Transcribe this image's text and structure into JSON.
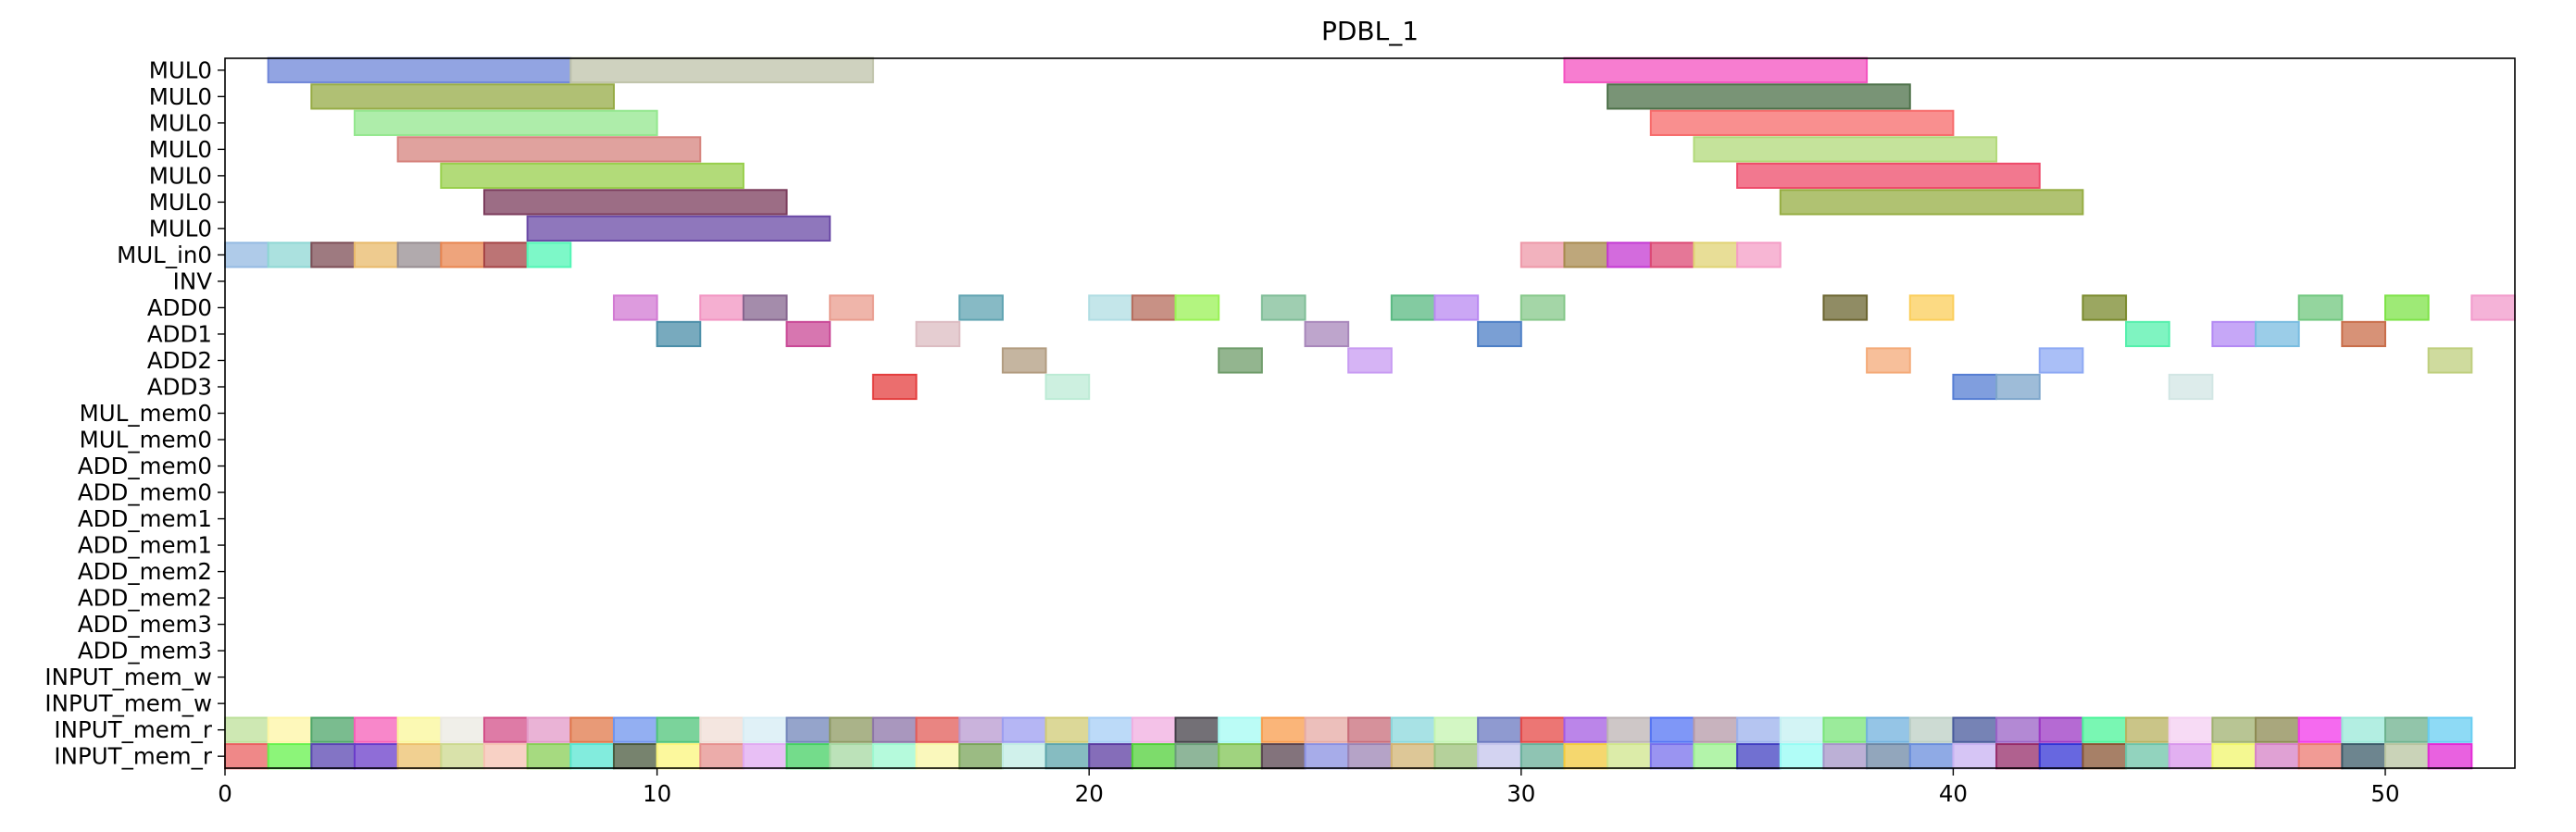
{
  "chart_data": {
    "type": "gantt",
    "title": "PDBL_1",
    "xlabel": "",
    "ylabel": "",
    "xlim": [
      0,
      53
    ],
    "x_ticks": [
      0,
      10,
      20,
      30,
      40,
      50
    ],
    "grid": false,
    "rows": [
      "MUL0",
      "MUL0",
      "MUL0",
      "MUL0",
      "MUL0",
      "MUL0",
      "MUL0",
      "MUL_in0",
      "INV",
      "ADD0",
      "ADD1",
      "ADD2",
      "ADD3",
      "MUL_mem0",
      "MUL_mem0",
      "ADD_mem0",
      "ADD_mem0",
      "ADD_mem1",
      "ADD_mem1",
      "ADD_mem2",
      "ADD_mem2",
      "ADD_mem3",
      "ADD_mem3",
      "INPUT_mem_w",
      "INPUT_mem_w",
      "INPUT_mem_r",
      "INPUT_mem_r"
    ],
    "tasks": [
      {
        "row": 0,
        "start": 1,
        "end": 8,
        "color": "#6e85d8"
      },
      {
        "row": 0,
        "start": 8,
        "end": 15,
        "color": "#bfc3a9"
      },
      {
        "row": 1,
        "start": 2,
        "end": 9,
        "color": "#96ab45"
      },
      {
        "row": 2,
        "start": 3,
        "end": 10,
        "color": "#93e78e"
      },
      {
        "row": 3,
        "start": 4,
        "end": 11,
        "color": "#d6837d"
      },
      {
        "row": 4,
        "start": 5,
        "end": 12,
        "color": "#98cf4c"
      },
      {
        "row": 5,
        "start": 6,
        "end": 13,
        "color": "#7b3c5c"
      },
      {
        "row": 6,
        "start": 7,
        "end": 14,
        "color": "#6a49a6"
      },
      {
        "row": 0,
        "start": 31,
        "end": 38,
        "color": "#f452c0"
      },
      {
        "row": 1,
        "start": 32,
        "end": 39,
        "color": "#4c7048"
      },
      {
        "row": 2,
        "start": 33,
        "end": 40,
        "color": "#f76a6a"
      },
      {
        "row": 3,
        "start": 34,
        "end": 41,
        "color": "#b2d97a"
      },
      {
        "row": 4,
        "start": 35,
        "end": 42,
        "color": "#ee4b6a"
      },
      {
        "row": 5,
        "start": 36,
        "end": 43,
        "color": "#96ad43"
      },
      {
        "row": 7,
        "start": 0,
        "end": 1,
        "color": "#94bae2"
      },
      {
        "row": 7,
        "start": 1,
        "end": 2,
        "color": "#8fd7d4"
      },
      {
        "row": 7,
        "start": 2,
        "end": 3,
        "color": "#7d4e56"
      },
      {
        "row": 7,
        "start": 3,
        "end": 4,
        "color": "#e8b96a"
      },
      {
        "row": 7,
        "start": 4,
        "end": 5,
        "color": "#978d91"
      },
      {
        "row": 7,
        "start": 5,
        "end": 6,
        "color": "#e88550"
      },
      {
        "row": 7,
        "start": 6,
        "end": 7,
        "color": "#a64547"
      },
      {
        "row": 7,
        "start": 7,
        "end": 8,
        "color": "#52f5b5"
      },
      {
        "row": 7,
        "start": 30,
        "end": 31,
        "color": "#ee98a8"
      },
      {
        "row": 7,
        "start": 31,
        "end": 32,
        "color": "#a88a4f"
      },
      {
        "row": 7,
        "start": 32,
        "end": 33,
        "color": "#c43ad2"
      },
      {
        "row": 7,
        "start": 33,
        "end": 34,
        "color": "#dc4a74"
      },
      {
        "row": 7,
        "start": 34,
        "end": 35,
        "color": "#e0d374"
      },
      {
        "row": 7,
        "start": 35,
        "end": 36,
        "color": "#f49dc6"
      },
      {
        "row": 9,
        "start": 9,
        "end": 10,
        "color": "#d27ad3"
      },
      {
        "row": 9,
        "start": 11,
        "end": 12,
        "color": "#f294c2"
      },
      {
        "row": 9,
        "start": 12,
        "end": 13,
        "color": "#86658f"
      },
      {
        "row": 9,
        "start": 14,
        "end": 15,
        "color": "#e99c8e"
      },
      {
        "row": 9,
        "start": 17,
        "end": 18,
        "color": "#5fa3b1"
      },
      {
        "row": 9,
        "start": 20,
        "end": 21,
        "color": "#b0dde3"
      },
      {
        "row": 9,
        "start": 21,
        "end": 22,
        "color": "#b66c5c"
      },
      {
        "row": 9,
        "start": 22,
        "end": 23,
        "color": "#9af256"
      },
      {
        "row": 9,
        "start": 24,
        "end": 25,
        "color": "#7fbd97"
      },
      {
        "row": 9,
        "start": 27,
        "end": 28,
        "color": "#5ab982"
      },
      {
        "row": 9,
        "start": 28,
        "end": 29,
        "color": "#b98af2"
      },
      {
        "row": 9,
        "start": 30,
        "end": 31,
        "color": "#86c88a"
      },
      {
        "row": 9,
        "start": 37,
        "end": 38,
        "color": "#6b6530"
      },
      {
        "row": 9,
        "start": 39,
        "end": 40,
        "color": "#fbce5a"
      },
      {
        "row": 9,
        "start": 43,
        "end": 44,
        "color": "#7a8a2c"
      },
      {
        "row": 9,
        "start": 48,
        "end": 49,
        "color": "#70c77e"
      },
      {
        "row": 9,
        "start": 50,
        "end": 51,
        "color": "#7ee348"
      },
      {
        "row": 9,
        "start": 52,
        "end": 53,
        "color": "#f29acb"
      },
      {
        "row": 10,
        "start": 10,
        "end": 11,
        "color": "#4b8ea8"
      },
      {
        "row": 10,
        "start": 13,
        "end": 14,
        "color": "#c94896"
      },
      {
        "row": 10,
        "start": 16,
        "end": 17,
        "color": "#dcbcc2"
      },
      {
        "row": 10,
        "start": 25,
        "end": 26,
        "color": "#a887bb"
      },
      {
        "row": 10,
        "start": 29,
        "end": 30,
        "color": "#4d7fc6"
      },
      {
        "row": 10,
        "start": 44,
        "end": 45,
        "color": "#54f0ac"
      },
      {
        "row": 10,
        "start": 46,
        "end": 47,
        "color": "#b389f4"
      },
      {
        "row": 10,
        "start": 47,
        "end": 48,
        "color": "#79bce0"
      },
      {
        "row": 10,
        "start": 49,
        "end": 50,
        "color": "#c96e4a"
      },
      {
        "row": 11,
        "start": 18,
        "end": 19,
        "color": "#b29c80"
      },
      {
        "row": 11,
        "start": 23,
        "end": 24,
        "color": "#6f9c6a"
      },
      {
        "row": 11,
        "start": 26,
        "end": 27,
        "color": "#c89bf2"
      },
      {
        "row": 11,
        "start": 38,
        "end": 39,
        "color": "#f4aa78"
      },
      {
        "row": 11,
        "start": 42,
        "end": 43,
        "color": "#8ea9f4"
      },
      {
        "row": 11,
        "start": 51,
        "end": 52,
        "color": "#bfcf7e"
      },
      {
        "row": 12,
        "start": 15,
        "end": 16,
        "color": "#e43d3d"
      },
      {
        "row": 12,
        "start": 19,
        "end": 20,
        "color": "#bcebd5"
      },
      {
        "row": 12,
        "start": 40,
        "end": 41,
        "color": "#557dd3"
      },
      {
        "row": 12,
        "start": 41,
        "end": 42,
        "color": "#7ea6cb"
      },
      {
        "row": 12,
        "start": 45,
        "end": 46,
        "color": "#d2e6e4"
      },
      {
        "row": 25,
        "start": 0,
        "end": 1,
        "color": "#bde09a"
      },
      {
        "row": 25,
        "start": 1,
        "end": 2,
        "color": "#fdf5a4"
      },
      {
        "row": 25,
        "start": 2,
        "end": 3,
        "color": "#4ea66a"
      },
      {
        "row": 25,
        "start": 3,
        "end": 4,
        "color": "#f65fb8"
      },
      {
        "row": 25,
        "start": 4,
        "end": 5,
        "color": "#faf79a"
      },
      {
        "row": 25,
        "start": 5,
        "end": 6,
        "color": "#ebe9e2"
      },
      {
        "row": 25,
        "start": 6,
        "end": 7,
        "color": "#d34f88"
      },
      {
        "row": 25,
        "start": 7,
        "end": 8,
        "color": "#e39ac8"
      },
      {
        "row": 25,
        "start": 8,
        "end": 9,
        "color": "#e0784a"
      },
      {
        "row": 25,
        "start": 9,
        "end": 10,
        "color": "#6f94ed"
      },
      {
        "row": 25,
        "start": 10,
        "end": 11,
        "color": "#4fc47a"
      },
      {
        "row": 25,
        "start": 11,
        "end": 12,
        "color": "#f0ddd6"
      },
      {
        "row": 25,
        "start": 12,
        "end": 13,
        "color": "#d6ecf4"
      },
      {
        "row": 25,
        "start": 13,
        "end": 14,
        "color": "#7285ba"
      },
      {
        "row": 25,
        "start": 14,
        "end": 15,
        "color": "#8e9a62"
      },
      {
        "row": 25,
        "start": 15,
        "end": 16,
        "color": "#8c74a8"
      },
      {
        "row": 25,
        "start": 16,
        "end": 17,
        "color": "#e25c58"
      },
      {
        "row": 25,
        "start": 17,
        "end": 18,
        "color": "#b89ad0"
      },
      {
        "row": 25,
        "start": 18,
        "end": 19,
        "color": "#9c9ef0"
      },
      {
        "row": 25,
        "start": 19,
        "end": 20,
        "color": "#d0cb76"
      },
      {
        "row": 25,
        "start": 20,
        "end": 21,
        "color": "#a5cdf5"
      },
      {
        "row": 25,
        "start": 21,
        "end": 22,
        "color": "#f0aee0"
      },
      {
        "row": 25,
        "start": 22,
        "end": 23,
        "color": "#444048"
      },
      {
        "row": 25,
        "start": 23,
        "end": 24,
        "color": "#a4fbf3"
      },
      {
        "row": 25,
        "start": 24,
        "end": 25,
        "color": "#f89c4c"
      },
      {
        "row": 25,
        "start": 25,
        "end": 26,
        "color": "#e6aaa4"
      },
      {
        "row": 25,
        "start": 26,
        "end": 27,
        "color": "#c86c7a"
      },
      {
        "row": 25,
        "start": 27,
        "end": 28,
        "color": "#8bd8dc"
      },
      {
        "row": 25,
        "start": 28,
        "end": 29,
        "color": "#c4f4b0"
      },
      {
        "row": 25,
        "start": 29,
        "end": 30,
        "color": "#6a78c0"
      },
      {
        "row": 25,
        "start": 30,
        "end": 31,
        "color": "#e64846"
      },
      {
        "row": 25,
        "start": 31,
        "end": 32,
        "color": "#a45ce2"
      },
      {
        "row": 25,
        "start": 32,
        "end": 33,
        "color": "#bdb4b4"
      },
      {
        "row": 25,
        "start": 33,
        "end": 34,
        "color": "#5474f4"
      },
      {
        "row": 25,
        "start": 34,
        "end": 35,
        "color": "#b69aa8"
      },
      {
        "row": 25,
        "start": 35,
        "end": 36,
        "color": "#9cb2ec"
      },
      {
        "row": 25,
        "start": 36,
        "end": 37,
        "color": "#c4f0f2"
      },
      {
        "row": 25,
        "start": 37,
        "end": 38,
        "color": "#7ae47a"
      },
      {
        "row": 25,
        "start": 38,
        "end": 39,
        "color": "#72b2de"
      },
      {
        "row": 25,
        "start": 39,
        "end": 40,
        "color": "#bccfc4"
      },
      {
        "row": 25,
        "start": 40,
        "end": 41,
        "color": "#485a9c"
      },
      {
        "row": 25,
        "start": 41,
        "end": 42,
        "color": "#9a62c6"
      },
      {
        "row": 25,
        "start": 42,
        "end": 43,
        "color": "#9c38c4"
      },
      {
        "row": 25,
        "start": 43,
        "end": 44,
        "color": "#4cf49a"
      },
      {
        "row": 25,
        "start": 44,
        "end": 45,
        "color": "#b8b260"
      },
      {
        "row": 25,
        "start": 45,
        "end": 46,
        "color": "#f4cff2"
      },
      {
        "row": 25,
        "start": 46,
        "end": 47,
        "color": "#a0b270"
      },
      {
        "row": 25,
        "start": 47,
        "end": 48,
        "color": "#8c8a52"
      },
      {
        "row": 25,
        "start": 48,
        "end": 49,
        "color": "#f238ea"
      },
      {
        "row": 25,
        "start": 49,
        "end": 50,
        "color": "#9ae8d8"
      },
      {
        "row": 25,
        "start": 50,
        "end": 51,
        "color": "#6eb28e"
      },
      {
        "row": 25,
        "start": 51,
        "end": 52,
        "color": "#68cdf2"
      },
      {
        "row": 26,
        "start": 0,
        "end": 1,
        "color": "#ea6060"
      },
      {
        "row": 26,
        "start": 1,
        "end": 2,
        "color": "#66f24c"
      },
      {
        "row": 26,
        "start": 2,
        "end": 3,
        "color": "#5a46b2"
      },
      {
        "row": 26,
        "start": 3,
        "end": 4,
        "color": "#6a3cca"
      },
      {
        "row": 26,
        "start": 4,
        "end": 5,
        "color": "#ecc06c"
      },
      {
        "row": 26,
        "start": 5,
        "end": 6,
        "color": "#ccd88e"
      },
      {
        "row": 26,
        "start": 6,
        "end": 7,
        "color": "#f6c2b2"
      },
      {
        "row": 26,
        "start": 7,
        "end": 8,
        "color": "#88ce56"
      },
      {
        "row": 26,
        "start": 8,
        "end": 9,
        "color": "#58e6d2"
      },
      {
        "row": 26,
        "start": 9,
        "end": 10,
        "color": "#4a5a3e"
      },
      {
        "row": 26,
        "start": 10,
        "end": 11,
        "color": "#fbf67c"
      },
      {
        "row": 26,
        "start": 11,
        "end": 12,
        "color": "#e6908e"
      },
      {
        "row": 26,
        "start": 12,
        "end": 13,
        "color": "#e0aaf2"
      },
      {
        "row": 26,
        "start": 13,
        "end": 14,
        "color": "#46d064"
      },
      {
        "row": 26,
        "start": 14,
        "end": 15,
        "color": "#a6d8a2"
      },
      {
        "row": 26,
        "start": 15,
        "end": 16,
        "color": "#9cf8d0"
      },
      {
        "row": 26,
        "start": 16,
        "end": 17,
        "color": "#f8f6a6"
      },
      {
        "row": 26,
        "start": 17,
        "end": 18,
        "color": "#7aa45a"
      },
      {
        "row": 26,
        "start": 18,
        "end": 19,
        "color": "#c0ece4"
      },
      {
        "row": 26,
        "start": 19,
        "end": 20,
        "color": "#5ea6ac"
      },
      {
        "row": 26,
        "start": 20,
        "end": 21,
        "color": "#5c3ca2"
      },
      {
        "row": 26,
        "start": 21,
        "end": 22,
        "color": "#52d03a"
      },
      {
        "row": 26,
        "start": 22,
        "end": 23,
        "color": "#6a9e78"
      },
      {
        "row": 26,
        "start": 23,
        "end": 24,
        "color": "#80c454"
      },
      {
        "row": 26,
        "start": 24,
        "end": 25,
        "color": "#5a4450"
      },
      {
        "row": 26,
        "start": 25,
        "end": 26,
        "color": "#8a90e2"
      },
      {
        "row": 26,
        "start": 26,
        "end": 27,
        "color": "#9c84b4"
      },
      {
        "row": 26,
        "start": 27,
        "end": 28,
        "color": "#d2b474"
      },
      {
        "row": 26,
        "start": 28,
        "end": 29,
        "color": "#9cc27a"
      },
      {
        "row": 26,
        "start": 29,
        "end": 30,
        "color": "#c4c4ec"
      },
      {
        "row": 26,
        "start": 30,
        "end": 31,
        "color": "#6ab09a"
      },
      {
        "row": 26,
        "start": 31,
        "end": 32,
        "color": "#f2ca3e"
      },
      {
        "row": 26,
        "start": 32,
        "end": 33,
        "color": "#d0e68c"
      },
      {
        "row": 26,
        "start": 33,
        "end": 34,
        "color": "#7870ec"
      },
      {
        "row": 26,
        "start": 34,
        "end": 35,
        "color": "#9af08e"
      },
      {
        "row": 26,
        "start": 35,
        "end": 36,
        "color": "#4240c2"
      },
      {
        "row": 26,
        "start": 36,
        "end": 37,
        "color": "#96fcf4"
      },
      {
        "row": 26,
        "start": 37,
        "end": 38,
        "color": "#a696c8"
      },
      {
        "row": 26,
        "start": 38,
        "end": 39,
        "color": "#6e88a6"
      },
      {
        "row": 26,
        "start": 39,
        "end": 40,
        "color": "#6a8edc"
      },
      {
        "row": 26,
        "start": 40,
        "end": 41,
        "color": "#c8b2f2"
      },
      {
        "row": 26,
        "start": 41,
        "end": 42,
        "color": "#962c6a"
      },
      {
        "row": 26,
        "start": 42,
        "end": 43,
        "color": "#3434d6"
      },
      {
        "row": 26,
        "start": 43,
        "end": 44,
        "color": "#8a5634"
      },
      {
        "row": 26,
        "start": 44,
        "end": 45,
        "color": "#6ec4a8"
      },
      {
        "row": 26,
        "start": 45,
        "end": 46,
        "color": "#d896ec"
      },
      {
        "row": 26,
        "start": 46,
        "end": 47,
        "color": "#f0f66c"
      },
      {
        "row": 26,
        "start": 47,
        "end": 48,
        "color": "#d682c6"
      },
      {
        "row": 26,
        "start": 48,
        "end": 49,
        "color": "#ec7a72"
      },
      {
        "row": 26,
        "start": 49,
        "end": 50,
        "color": "#3c5c6a"
      },
      {
        "row": 26,
        "start": 50,
        "end": 51,
        "color": "#b8c4a0"
      },
      {
        "row": 26,
        "start": 51,
        "end": 52,
        "color": "#e22cd6"
      }
    ]
  }
}
